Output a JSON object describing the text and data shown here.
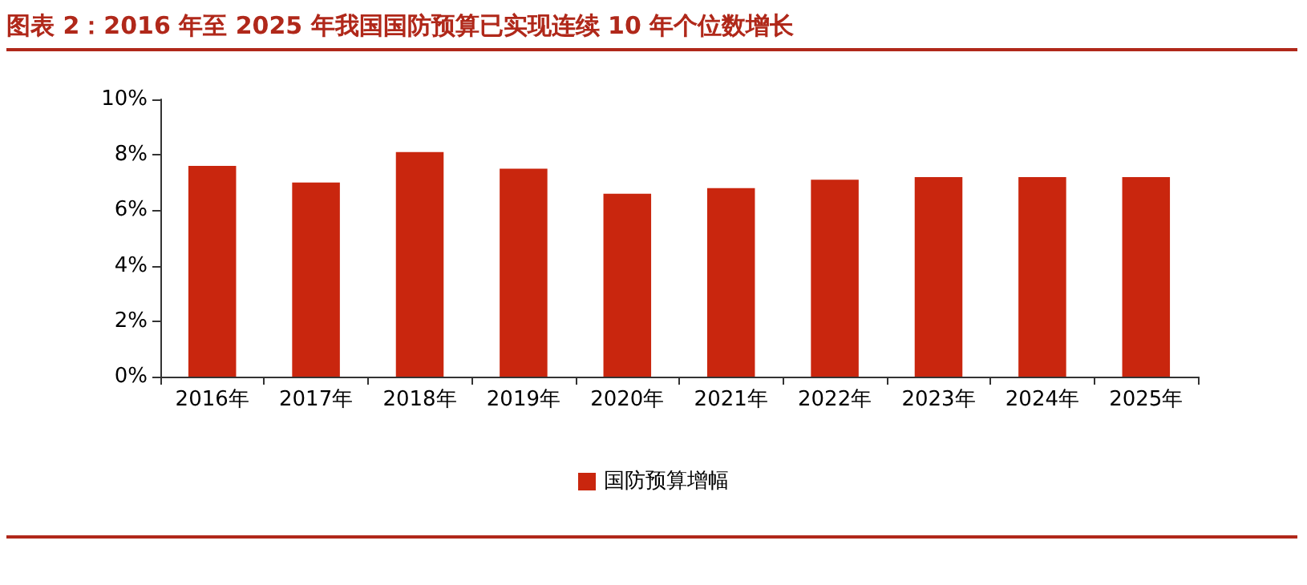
{
  "chart_data": {
    "type": "bar",
    "title": "图表 2：2016 年至 2025 年我国国防预算已实现连续 10 年个位数增长",
    "categories": [
      "2016年",
      "2017年",
      "2018年",
      "2019年",
      "2020年",
      "2021年",
      "2022年",
      "2023年",
      "2024年",
      "2025年"
    ],
    "series": [
      {
        "name": "国防预算增幅",
        "color": "#c9260e",
        "values": [
          7.6,
          7.0,
          8.1,
          7.5,
          6.6,
          6.8,
          7.1,
          7.2,
          7.2,
          7.2
        ]
      }
    ],
    "ylim": [
      0,
      10
    ],
    "yticks": [
      {
        "value": 0,
        "label": "0%"
      },
      {
        "value": 2,
        "label": "2%"
      },
      {
        "value": 4,
        "label": "4%"
      },
      {
        "value": 6,
        "label": "6%"
      },
      {
        "value": 8,
        "label": "8%"
      },
      {
        "value": 10,
        "label": "10%"
      }
    ],
    "grid": false,
    "legend": "bottom"
  }
}
